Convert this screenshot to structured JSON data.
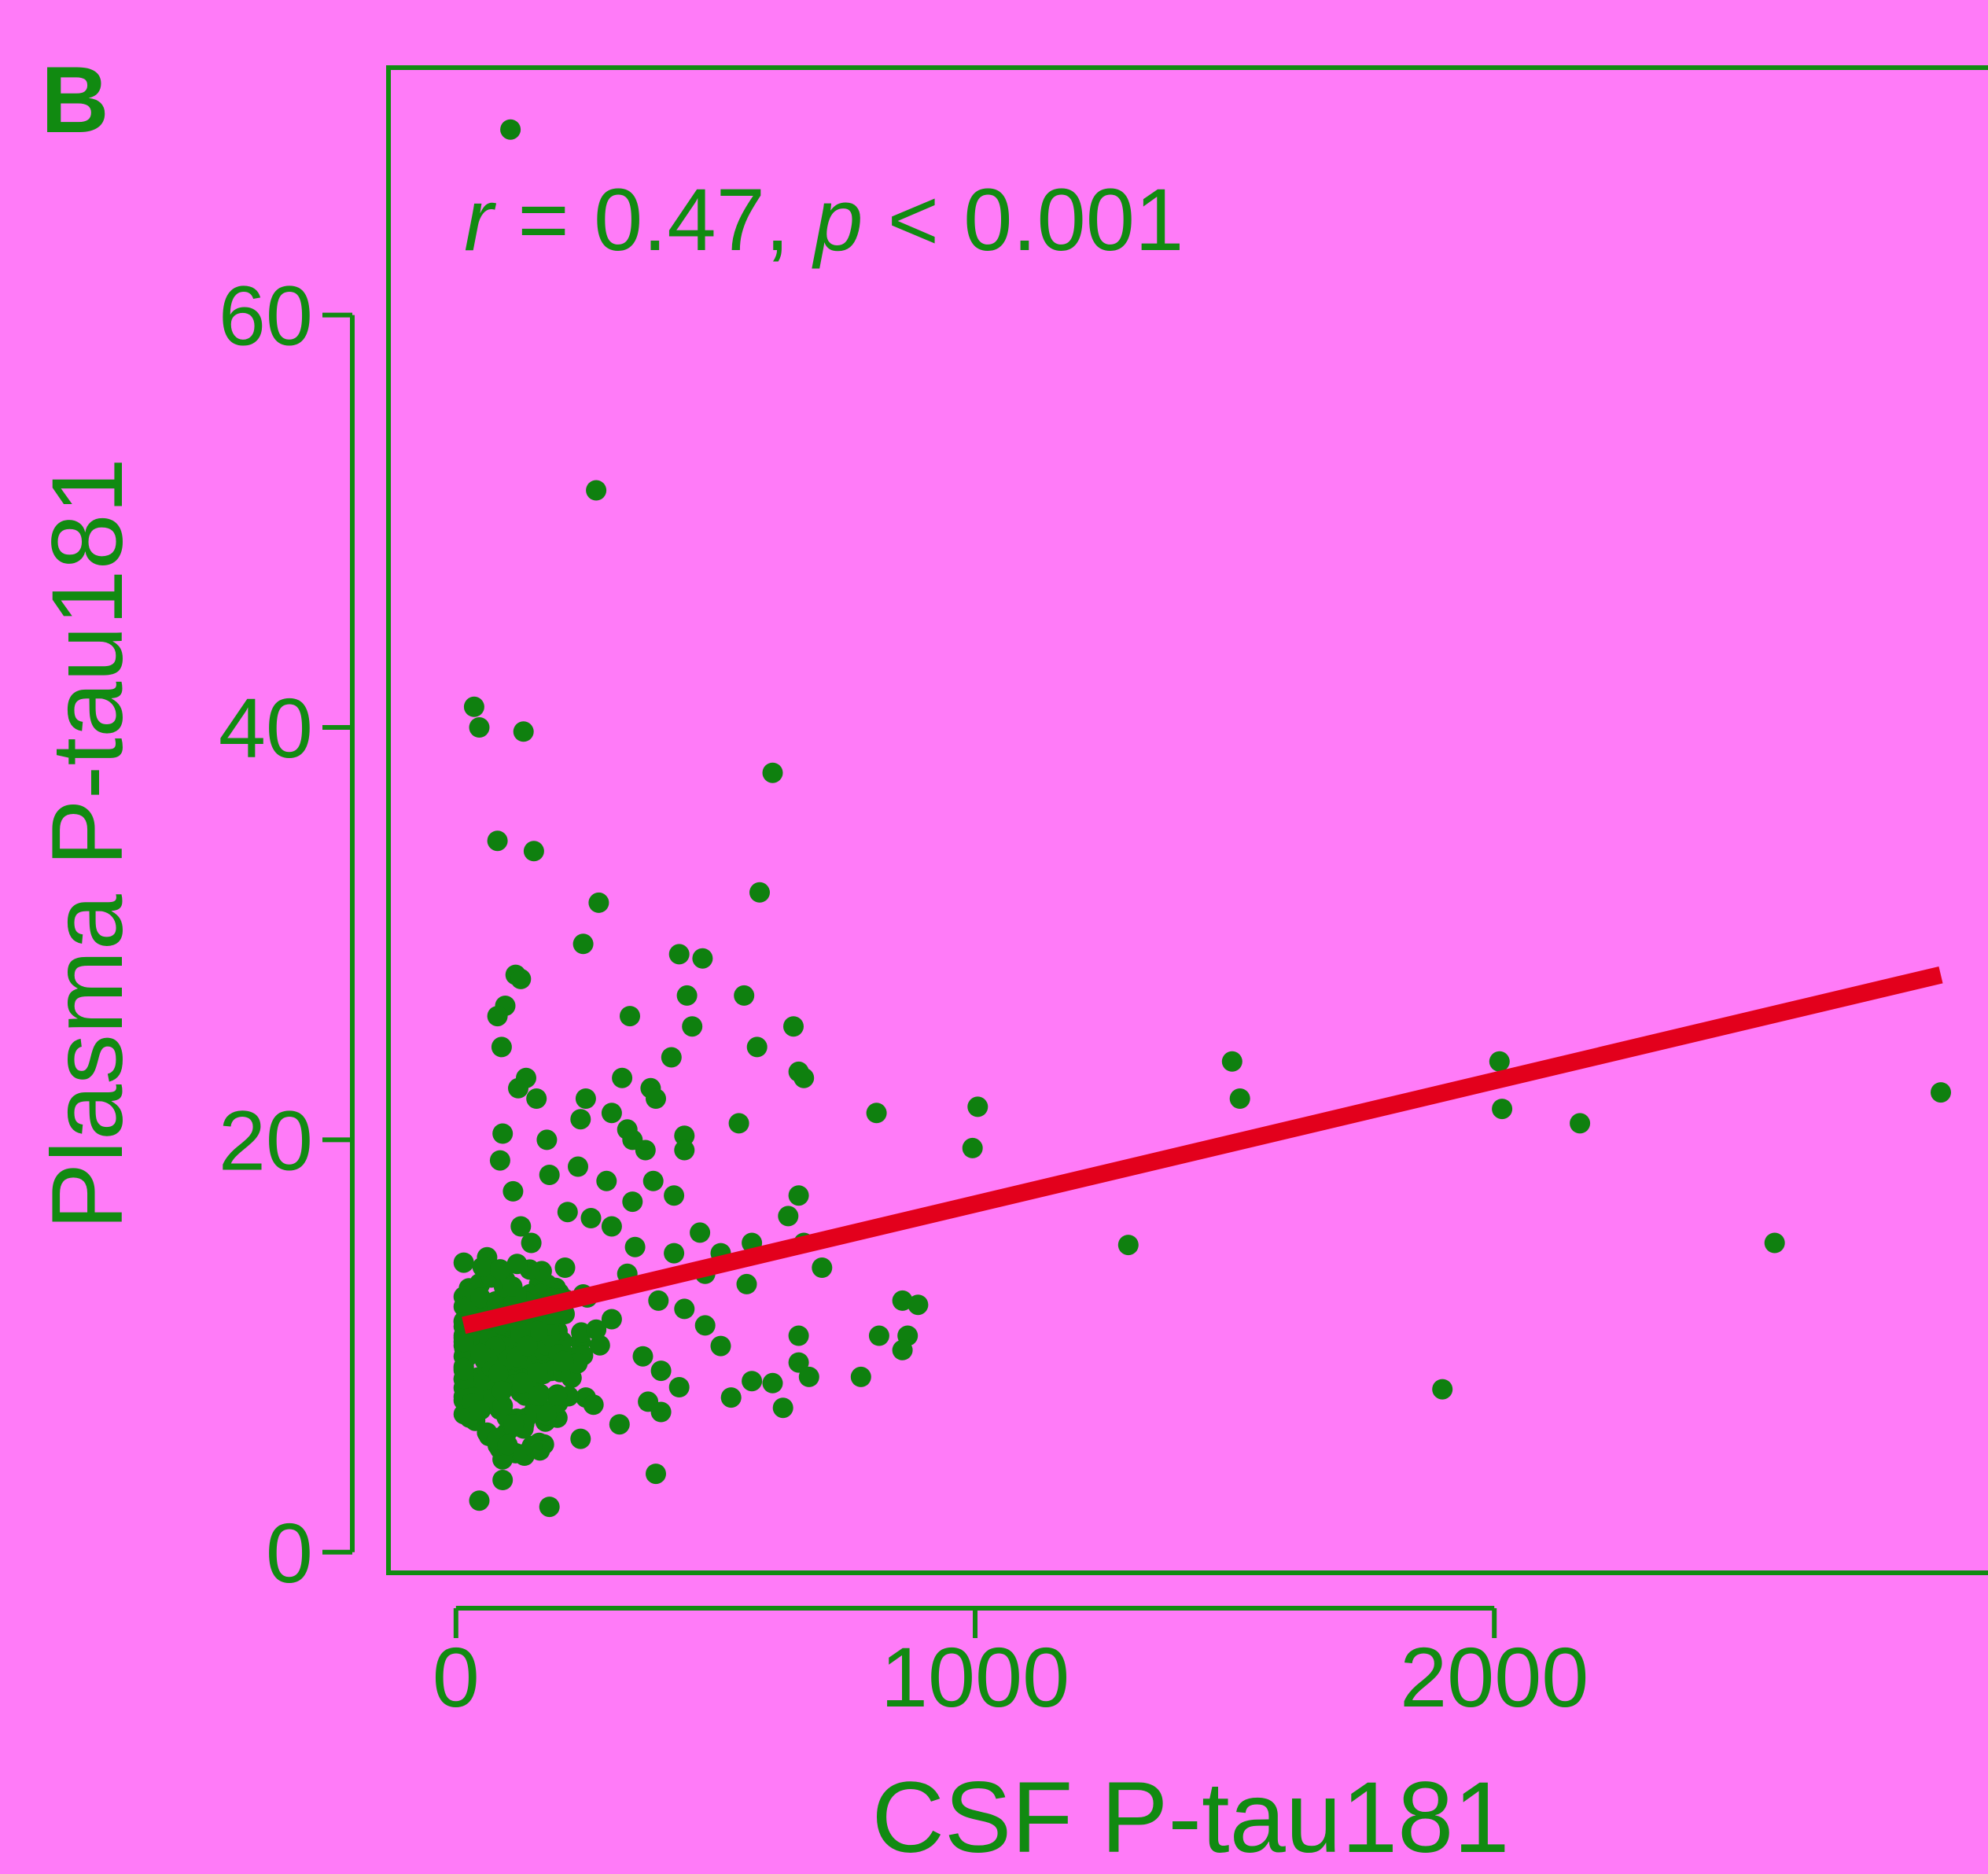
{
  "panel_label": "B",
  "annotation": {
    "r_symbol": "r",
    "r_text": " = 0.47, ",
    "p_symbol": "p",
    "p_text": " < 0.001"
  },
  "colors": {
    "background": "#ff7bf8",
    "axis": "#118a11",
    "points": "#0f800f",
    "fit_line": "#e3001c"
  },
  "chart_data": {
    "type": "scatter",
    "title": "",
    "xlabel": "CSF P-tau181",
    "ylabel": "Plasma P-tau181",
    "xlim": [
      -130,
      2960
    ],
    "ylim": [
      -1,
      72
    ],
    "x_ticks": [
      0,
      1000,
      2000
    ],
    "y_ticks": [
      0,
      20,
      40,
      60
    ],
    "x_tick_labels": [
      "0",
      "1000",
      "2000"
    ],
    "y_tick_labels": [
      "0",
      "20",
      "40",
      "60"
    ],
    "grid": false,
    "legend": "none",
    "fit_line": {
      "x": [
        15,
        2860
      ],
      "y": [
        11.0,
        28.0
      ]
    },
    "points": [
      [
        105,
        69.0
      ],
      [
        270,
        51.5
      ],
      [
        35,
        41.0
      ],
      [
        45,
        40.0
      ],
      [
        130,
        39.8
      ],
      [
        610,
        37.8
      ],
      [
        80,
        34.5
      ],
      [
        150,
        34.0
      ],
      [
        585,
        32.0
      ],
      [
        275,
        31.5
      ],
      [
        245,
        29.5
      ],
      [
        430,
        29.0
      ],
      [
        475,
        28.8
      ],
      [
        115,
        28.0
      ],
      [
        125,
        27.8
      ],
      [
        95,
        26.5
      ],
      [
        80,
        26.0
      ],
      [
        335,
        26.0
      ],
      [
        445,
        27.0
      ],
      [
        555,
        27.0
      ],
      [
        455,
        25.5
      ],
      [
        650,
        25.5
      ],
      [
        88,
        24.5
      ],
      [
        580,
        24.5
      ],
      [
        415,
        24.0
      ],
      [
        660,
        23.3
      ],
      [
        135,
        23.0
      ],
      [
        670,
        23.0
      ],
      [
        120,
        22.5
      ],
      [
        320,
        23.0
      ],
      [
        250,
        22.0
      ],
      [
        375,
        22.5
      ],
      [
        385,
        22.0
      ],
      [
        155,
        22.0
      ],
      [
        300,
        21.3
      ],
      [
        810,
        21.3
      ],
      [
        1005,
        21.6
      ],
      [
        1495,
        23.8
      ],
      [
        1510,
        22.0
      ],
      [
        2010,
        23.8
      ],
      [
        2015,
        21.5
      ],
      [
        2165,
        20.8
      ],
      [
        2860,
        22.3
      ],
      [
        240,
        21.0
      ],
      [
        545,
        20.8
      ],
      [
        90,
        20.3
      ],
      [
        175,
        20.0
      ],
      [
        330,
        20.5
      ],
      [
        340,
        20.0
      ],
      [
        440,
        20.2
      ],
      [
        365,
        19.5
      ],
      [
        440,
        19.5
      ],
      [
        995,
        19.6
      ],
      [
        85,
        19.0
      ],
      [
        235,
        18.7
      ],
      [
        180,
        18.3
      ],
      [
        290,
        18.0
      ],
      [
        380,
        18.0
      ],
      [
        110,
        17.5
      ],
      [
        660,
        17.3
      ],
      [
        340,
        17.0
      ],
      [
        420,
        17.3
      ],
      [
        215,
        16.5
      ],
      [
        260,
        16.2
      ],
      [
        640,
        16.3
      ],
      [
        125,
        15.8
      ],
      [
        300,
        15.8
      ],
      [
        470,
        15.5
      ],
      [
        570,
        15.0
      ],
      [
        145,
        15.0
      ],
      [
        1295,
        14.9
      ],
      [
        2540,
        15.0
      ],
      [
        670,
        15.0
      ],
      [
        345,
        14.8
      ],
      [
        510,
        14.5
      ],
      [
        60,
        14.3
      ],
      [
        420,
        14.5
      ],
      [
        705,
        13.8
      ],
      [
        210,
        13.8
      ],
      [
        330,
        13.5
      ],
      [
        95,
        13.2
      ],
      [
        160,
        13.0
      ],
      [
        560,
        13.0
      ],
      [
        480,
        13.5
      ],
      [
        25,
        12.8
      ],
      [
        245,
        12.5
      ],
      [
        860,
        12.2
      ],
      [
        890,
        12.0
      ],
      [
        390,
        12.2
      ],
      [
        120,
        12.0
      ],
      [
        75,
        11.8
      ],
      [
        440,
        11.8
      ],
      [
        20,
        11.2
      ],
      [
        300,
        11.3
      ],
      [
        480,
        11.0
      ],
      [
        660,
        10.5
      ],
      [
        815,
        10.5
      ],
      [
        870,
        10.5
      ],
      [
        165,
        10.5
      ],
      [
        240,
        10.2
      ],
      [
        510,
        10.0
      ],
      [
        860,
        9.8
      ],
      [
        65,
        9.5
      ],
      [
        360,
        9.5
      ],
      [
        15,
        9.0
      ],
      [
        660,
        9.2
      ],
      [
        110,
        8.8
      ],
      [
        395,
        8.8
      ],
      [
        780,
        8.5
      ],
      [
        680,
        8.5
      ],
      [
        570,
        8.3
      ],
      [
        430,
        8.0
      ],
      [
        150,
        8.0
      ],
      [
        610,
        8.2
      ],
      [
        1900,
        7.9
      ],
      [
        250,
        7.5
      ],
      [
        370,
        7.3
      ],
      [
        530,
        7.5
      ],
      [
        45,
        7.2
      ],
      [
        630,
        7.0
      ],
      [
        190,
        7.0
      ],
      [
        395,
        6.8
      ],
      [
        100,
        6.5
      ],
      [
        315,
        6.2
      ],
      [
        130,
        6.0
      ],
      [
        60,
        5.8
      ],
      [
        240,
        5.5
      ],
      [
        160,
        5.3
      ],
      [
        85,
        5.0
      ],
      [
        115,
        4.8
      ],
      [
        385,
        3.8
      ],
      [
        90,
        3.5
      ],
      [
        45,
        2.5
      ],
      [
        180,
        2.2
      ]
    ],
    "dense_cluster": {
      "count": 260,
      "x_center": 110,
      "x_spread": 95,
      "y_center": 9.5,
      "y_spread": 3.2
    }
  }
}
